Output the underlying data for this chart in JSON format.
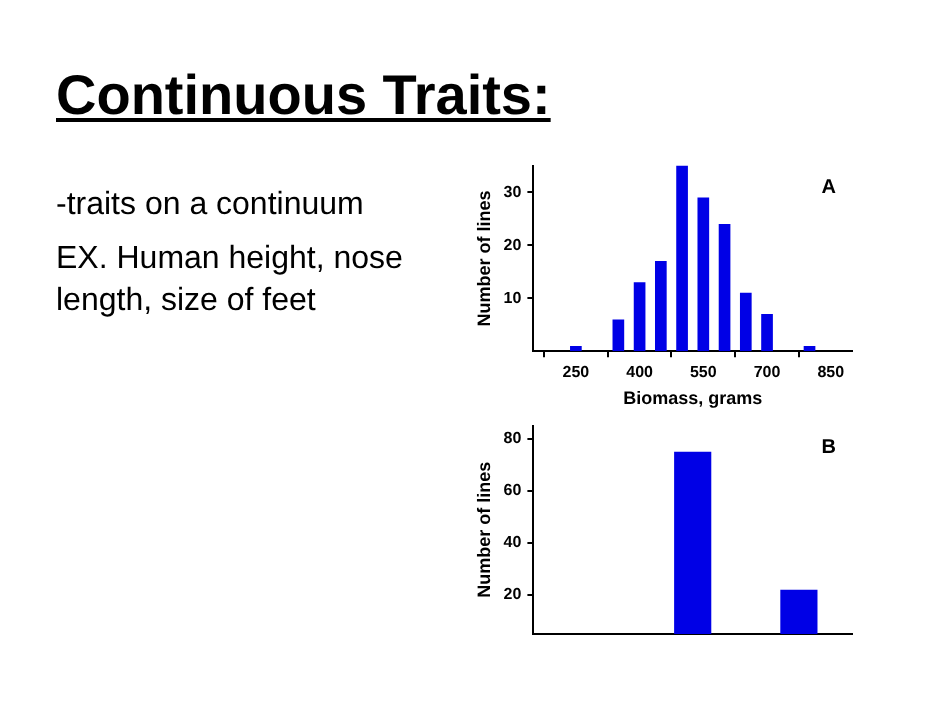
{
  "chart_data": [
    {
      "type": "other",
      "title": "Continuous Traits:",
      "annotations": [
        "-traits on a continuum",
        "EX.  Human height, nose length, size of feet"
      ]
    },
    {
      "type": "histogram",
      "bins": [
        225,
        275,
        325,
        375,
        425,
        475,
        525,
        575,
        625,
        675,
        725,
        775,
        825
      ],
      "values": [
        1,
        0,
        6,
        13,
        17,
        35,
        29,
        24,
        11,
        7,
        0,
        1
      ],
      "color": "#0000e6",
      "xlim": [
        150,
        900
      ],
      "xticks": [
        250,
        400,
        550,
        700,
        850
      ],
      "ylim": [
        0,
        35
      ],
      "yticks": [
        10,
        20,
        30
      ],
      "xlabel": "Biomass, grams",
      "ylabel": "Number of lines",
      "annotations": [
        "A"
      ]
    },
    {
      "type": "bar",
      "categories": [
        null,
        null,
        null
      ],
      "values": [
        null,
        75,
        22
      ],
      "color": "#0000e6",
      "ylim": [
        5,
        85
      ],
      "yticks": [
        20,
        40,
        60,
        80
      ],
      "ylabel": "Number of lines",
      "tick_labels": "y",
      "annotations": [
        "B"
      ]
    }
  ]
}
